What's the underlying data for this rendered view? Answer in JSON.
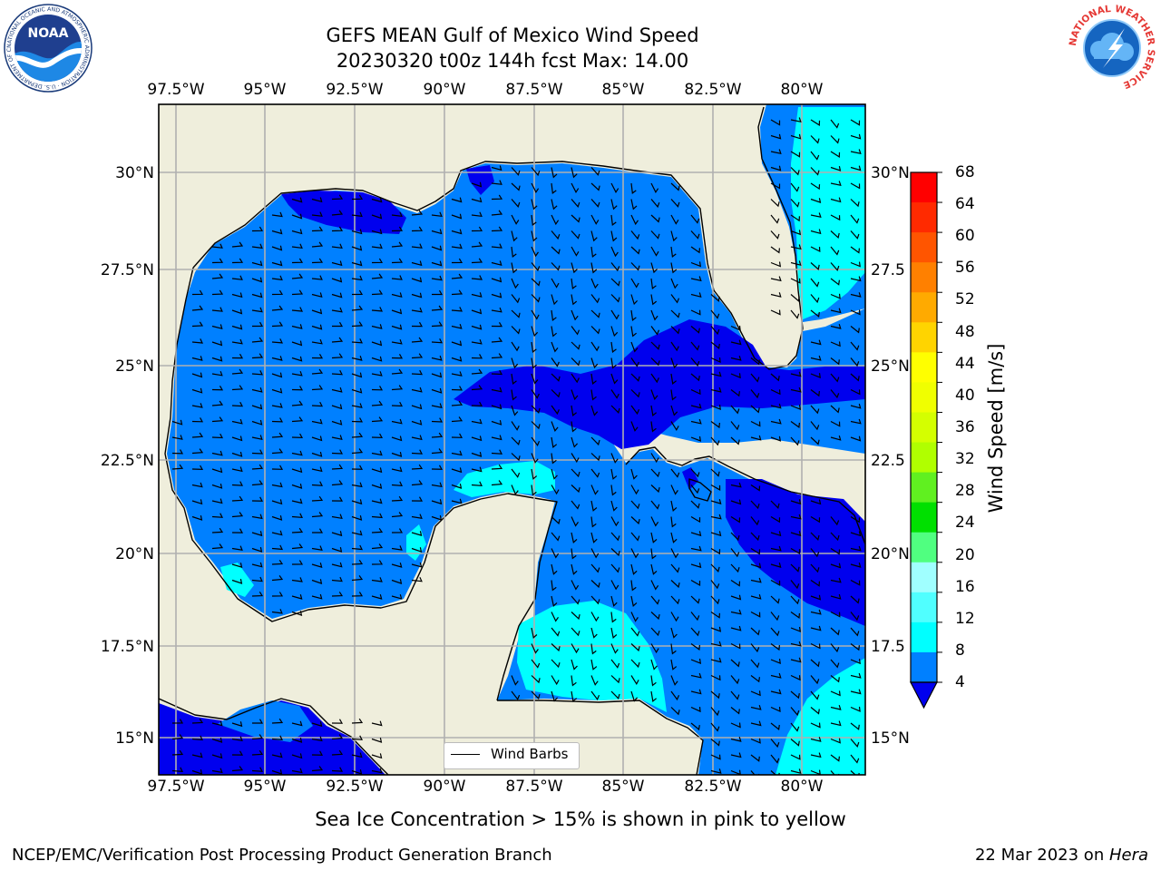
{
  "title": {
    "line1": "GEFS MEAN Gulf of Mexico Wind Speed",
    "line2": "20230320 t00z 144h fcst   Max: 14.00"
  },
  "axes": {
    "lon_ticks": [
      "97.5°W",
      "95°W",
      "92.5°W",
      "90°W",
      "87.5°W",
      "85°W",
      "82.5°W",
      "80°W"
    ],
    "lat_ticks_left": [
      "30°N",
      "27.5°N",
      "25°N",
      "22.5°N",
      "20°N",
      "17.5°N",
      "15°N"
    ],
    "lat_ticks_right": [
      "30°N",
      "27.5",
      "25°N",
      "22.5",
      "20°N",
      "17.5",
      "15°N"
    ]
  },
  "colorbar": {
    "label": "Wind Speed [m/s]",
    "ticks": [
      "68",
      "64",
      "60",
      "56",
      "52",
      "48",
      "44",
      "40",
      "36",
      "32",
      "28",
      "24",
      "20",
      "16",
      "12",
      "8",
      "4"
    ],
    "colors": [
      "#ff0000",
      "#ff2a00",
      "#ff5500",
      "#ff8000",
      "#ffaa00",
      "#ffd400",
      "#ffff00",
      "#f0ff00",
      "#d4ff00",
      "#b0ff00",
      "#60f020",
      "#00e000",
      "#50ff80",
      "#a0ffff",
      "#50ffff",
      "#00ffff",
      "#0080ff"
    ],
    "extend_color": "#0000ee"
  },
  "legend": {
    "label": "Wind Barbs"
  },
  "note": "Sea Ice Concentration > 15% is shown in pink to yellow",
  "footer": {
    "left": "NCEP/EMC/Verification Post Processing Product Generation Branch",
    "right_date": "22 Mar 2023 on ",
    "right_machine": "Hera"
  },
  "logos": {
    "noaa_text": "NOAA",
    "noaa_ring": "NATIONAL OCEANIC AND ATMOSPHERIC ADMINISTRATION · U.S. DEPARTMENT OF COMMERCE",
    "nws_ring": "NATIONAL WEATHER SERVICE"
  },
  "colors": {
    "land": "#efeedc",
    "level_4_8": "#0080ff",
    "level_below_4": "#0000ee",
    "level_8_12": "#00ffff",
    "grid": "#b0b0b0"
  }
}
